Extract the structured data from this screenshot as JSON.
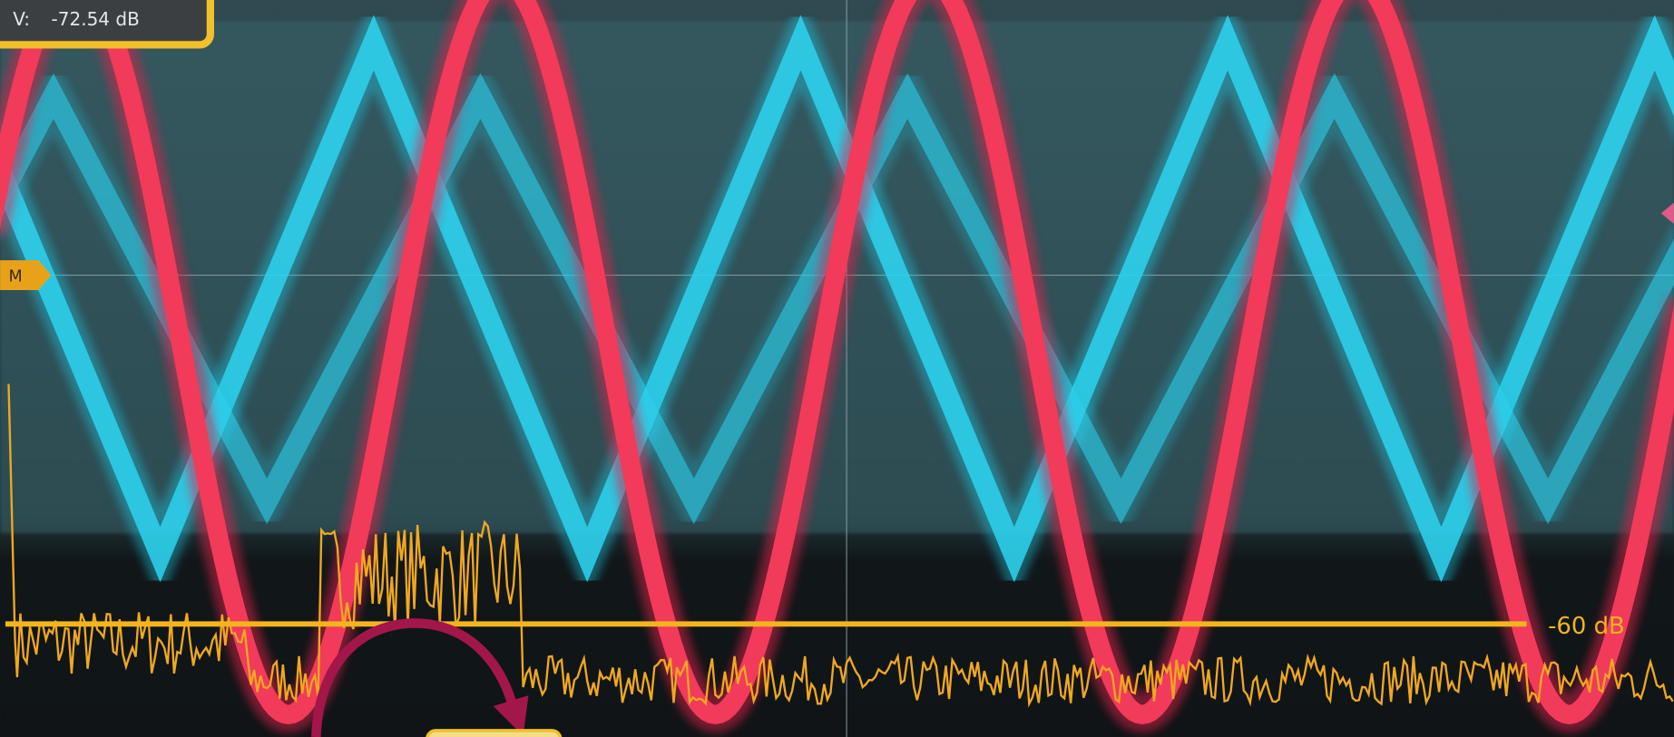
{
  "readout": {
    "label": "V:",
    "value": "-72.54 dB"
  },
  "marker": "M",
  "threshold_label": "-60 dB"
}
